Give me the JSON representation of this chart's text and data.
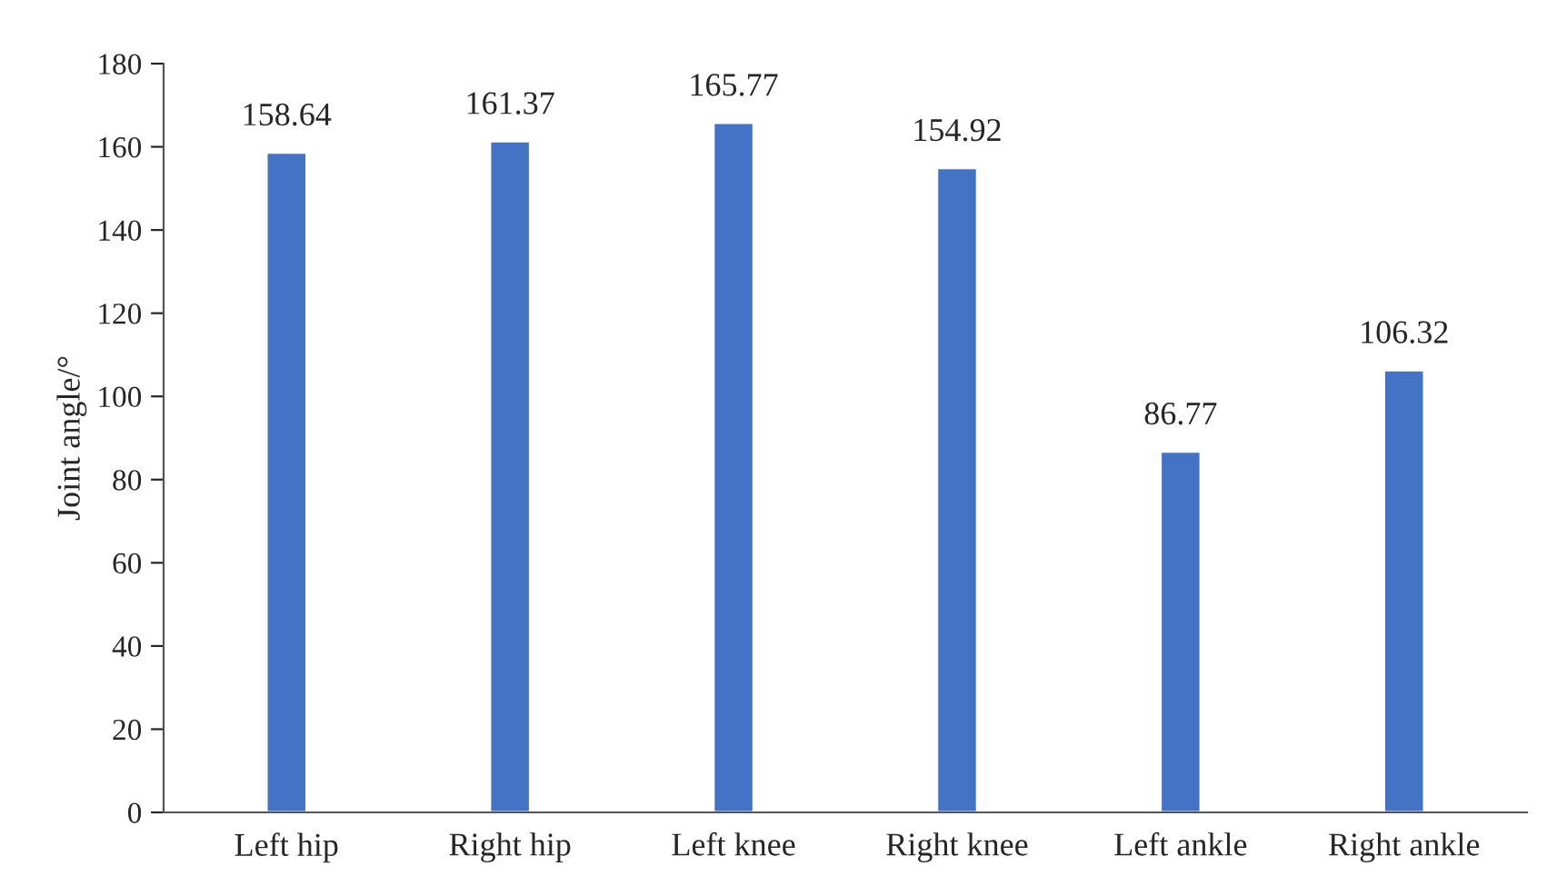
{
  "chart_data": {
    "type": "bar",
    "ylabel": "Joint angle/°",
    "categories": [
      "Left hip",
      "Right hip",
      "Left knee",
      "Right knee",
      "Left ankle",
      "Right ankle"
    ],
    "values": [
      158.64,
      161.37,
      165.77,
      154.92,
      86.77,
      106.32
    ],
    "color": "#4472c4",
    "ylim": [
      0,
      180
    ],
    "yticks": [
      0,
      20,
      40,
      60,
      80,
      100,
      120,
      140,
      160,
      180
    ],
    "grid": false,
    "data_labels": true
  }
}
